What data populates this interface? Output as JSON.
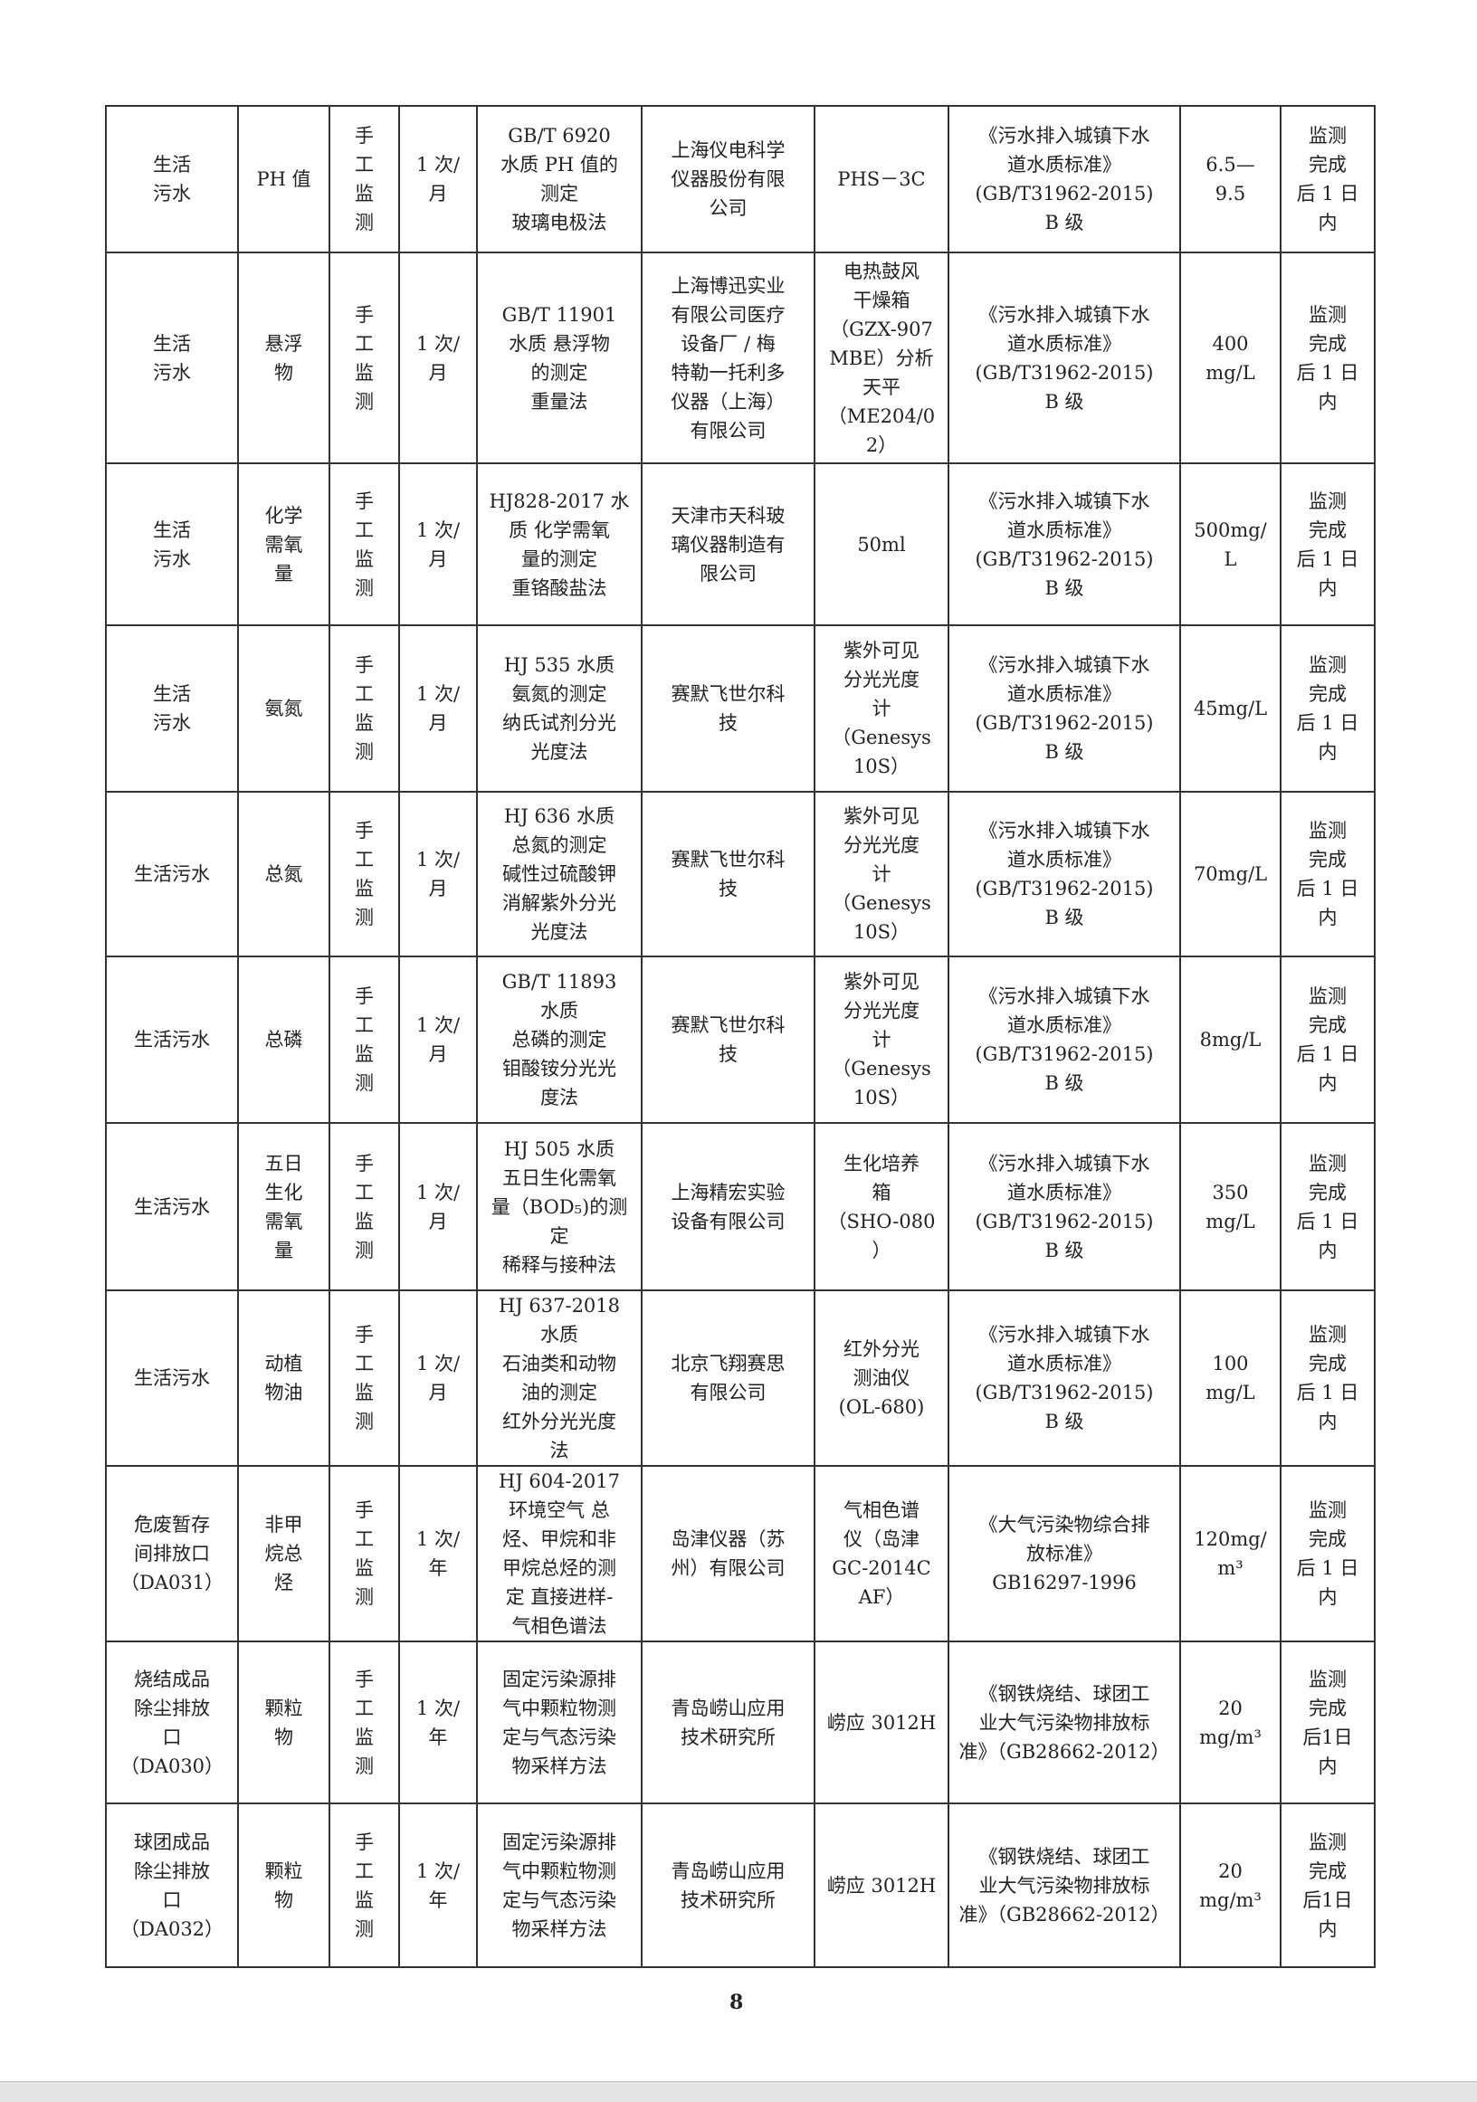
{
  "rows": [
    {
      "point": "生活\n污水",
      "item": "PH 值",
      "mode": "手\n工\n监\n测",
      "freq": "1 次/\n月",
      "method": "GB/T 6920\n水质 PH 值的\n测定\n玻璃电极法",
      "maker": "上海仪电科学\n仪器股份有限\n公司",
      "instrument": "PHS－3C",
      "standard": "《污水排入城镇下水\n道水质标准》\n(GB/T31962-2015)\nB 级",
      "limit": "6.5—\n9.5",
      "report": "监测\n完成\n后 1 日\n内"
    },
    {
      "point": "生活\n污水",
      "item": "悬浮\n物",
      "mode": "手\n工\n监\n测",
      "freq": "1 次/\n月",
      "method": "GB/T 11901\n水质 悬浮物\n的测定\n重量法",
      "maker": "上海博迅实业\n有限公司医疗\n设备厂 / 梅\n特勒一托利多\n仪器（上海）\n有限公司",
      "instrument": "电热鼓风\n干燥箱\n（GZX-907\nMBE）分析\n天平\n（ME204/0\n2）",
      "standard": "《污水排入城镇下水\n道水质标准》\n(GB/T31962-2015)\nB 级",
      "limit": "400\nmg/L",
      "report": "监测\n完成\n后 1 日\n内"
    },
    {
      "point": "生活\n污水",
      "item": "化学\n需氧\n量",
      "mode": "手\n工\n监\n测",
      "freq": "1 次/\n月",
      "method": "HJ828-2017 水\n质 化学需氧\n量的测定\n重铬酸盐法",
      "maker": "天津市天科玻\n璃仪器制造有\n限公司",
      "instrument": "50ml",
      "standard": "《污水排入城镇下水\n道水质标准》\n(GB/T31962-2015)\nB 级",
      "limit": "500mg/\nL",
      "report": "监测\n完成\n后 1 日\n内"
    },
    {
      "point": "生活\n污水",
      "item": "氨氮",
      "mode": "手\n工\n监\n测",
      "freq": "1 次/\n月",
      "method": "HJ 535 水质\n氨氮的测定\n纳氏试剂分光\n光度法",
      "maker": "赛默飞世尔科\n技",
      "instrument": "紫外可见\n分光光度\n计\n（Genesys\n10S）",
      "standard": "《污水排入城镇下水\n道水质标准》\n(GB/T31962-2015)\nB 级",
      "limit": "45mg/L",
      "report": "监测\n完成\n后 1 日\n内"
    },
    {
      "point": "生活污水",
      "item": "总氮",
      "mode": "手\n工\n监\n测",
      "freq": "1 次/\n月",
      "method": "HJ 636 水质\n总氮的测定\n碱性过硫酸钾\n消解紫外分光\n光度法",
      "maker": "赛默飞世尔科\n技",
      "instrument": "紫外可见\n分光光度\n计\n（Genesys\n10S）",
      "standard": "《污水排入城镇下水\n道水质标准》\n(GB/T31962-2015)\nB 级",
      "limit": "70mg/L",
      "report": "监测\n完成\n后 1 日\n内"
    },
    {
      "point": "生活污水",
      "item": "总磷",
      "mode": "手\n工\n监\n测",
      "freq": "1 次/\n月",
      "method": "GB/T 11893\n水质\n总磷的测定\n钼酸铵分光光\n度法",
      "maker": "赛默飞世尔科\n技",
      "instrument": "紫外可见\n分光光度\n计\n（Genesys\n10S）",
      "standard": "《污水排入城镇下水\n道水质标准》\n(GB/T31962-2015)\nB 级",
      "limit": "8mg/L",
      "report": "监测\n完成\n后 1 日\n内"
    },
    {
      "point": "生活污水",
      "item": "五日\n生化\n需氧\n量",
      "mode": "手\n工\n监\n测",
      "freq": "1 次/\n月",
      "method": "HJ 505 水质\n五日生化需氧\n量（BOD₅)的测\n定\n稀释与接种法",
      "maker": "上海精宏实验\n设备有限公司",
      "instrument": "生化培养\n箱\n（SHO-080\n）",
      "standard": "《污水排入城镇下水\n道水质标准》\n(GB/T31962-2015)\nB 级",
      "limit": "350\nmg/L",
      "report": "监测\n完成\n后 1 日\n内"
    },
    {
      "point": "生活污水",
      "item": "动植\n物油",
      "mode": "手\n工\n监\n测",
      "freq": "1 次/\n月",
      "method": "HJ 637-2018\n水质\n石油类和动物\n油的测定\n红外分光光度\n法",
      "maker": "北京飞翔赛思\n有限公司",
      "instrument": "红外分光\n测油仪\n(OL-680)",
      "standard": "《污水排入城镇下水\n道水质标准》\n(GB/T31962-2015)\nB 级",
      "limit": "100\nmg/L",
      "report": "监测\n完成\n后 1 日\n内"
    },
    {
      "point": "危废暂存\n间排放口\n（DA031）",
      "item": "非甲\n烷总\n烃",
      "mode": "手\n工\n监\n测",
      "freq": "1 次/\n年",
      "method": "HJ 604-2017\n环境空气 总\n烃、甲烷和非\n甲烷总烃的测\n定 直接进样-\n气相色谱法",
      "maker": "岛津仪器（苏\n州）有限公司",
      "instrument": "气相色谱\n仪（岛津\nGC-2014C\nAF）",
      "standard": "《大气污染物综合排\n放标准》\nGB16297-1996",
      "limit": "120mg/\nm³",
      "report": "监测\n完成\n后 1 日\n内"
    },
    {
      "point": "烧结成品\n除尘排放\n口\n（DA030）",
      "item": "颗粒\n物",
      "mode": "手\n工\n监\n测",
      "freq": "1 次/\n年",
      "method": "固定污染源排\n气中颗粒物测\n定与气态污染\n物采样方法",
      "maker": "青岛崂山应用\n技术研究所",
      "instrument": "崂应 3012H",
      "standard": "《钢铁烧结、球团工\n业大气污染物排放标\n准》（GB28662-2012）",
      "limit": "20\nmg/m³",
      "report": "监测\n完成\n后1日\n内"
    },
    {
      "point": "球团成品\n除尘排放\n口\n（DA032）",
      "item": "颗粒\n物",
      "mode": "手\n工\n监\n测",
      "freq": "1 次/\n年",
      "method": "固定污染源排\n气中颗粒物测\n定与气态污染\n物采样方法",
      "maker": "青岛崂山应用\n技术研究所",
      "instrument": "崂应 3012H",
      "standard": "《钢铁烧结、球团工\n业大气污染物排放标\n准》（GB28662-2012）",
      "limit": "20\nmg/m³",
      "report": "监测\n完成\n后1日\n内"
    }
  ],
  "page_number": "8"
}
